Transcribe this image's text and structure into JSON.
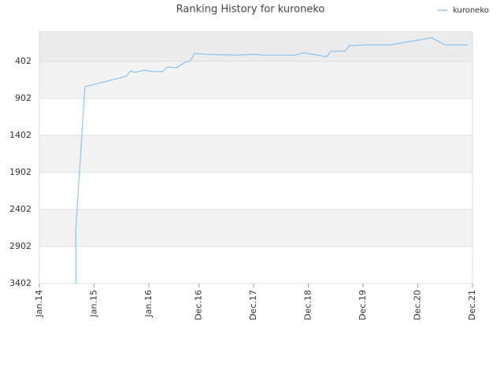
{
  "chart_data": {
    "type": "line",
    "title": "Ranking History for kuroneko",
    "x": [
      "2014-09",
      "2014-09",
      "2014-11",
      "2015-08",
      "2015-09",
      "2015-10",
      "2015-12",
      "2016-02",
      "2016-04",
      "2016-05",
      "2016-07",
      "2016-09",
      "2016-10",
      "2016-11",
      "2017-02",
      "2017-08",
      "2017-12",
      "2018-02",
      "2018-09",
      "2018-11",
      "2019-04",
      "2019-05",
      "2019-08",
      "2019-09",
      "2020-01",
      "2020-06",
      "2021-03",
      "2021-06",
      "2021-11"
    ],
    "series": [
      {
        "name": "kuroneko",
        "color": "#8cc4f2",
        "values": [
          3402,
          2660,
          745,
          606,
          532,
          553,
          521,
          542,
          542,
          478,
          489,
          415,
          404,
          298,
          309,
          319,
          309,
          319,
          319,
          287,
          340,
          266,
          266,
          191,
          181,
          181,
          85,
          181,
          181
        ]
      }
    ],
    "xlim": [
      "2014-01",
      "2021-12"
    ],
    "xticks": [
      {
        "value": "2014-01",
        "label": "Jan.14"
      },
      {
        "value": "2015-01",
        "label": "Jan.15"
      },
      {
        "value": "2016-01",
        "label": "Jan.16"
      },
      {
        "value": "2016-12",
        "label": "Dec.16"
      },
      {
        "value": "2017-12",
        "label": "Dec.17"
      },
      {
        "value": "2018-12",
        "label": "Dec.18"
      },
      {
        "value": "2019-12",
        "label": "Dec.19"
      },
      {
        "value": "2020-12",
        "label": "Dec.20"
      },
      {
        "value": "2021-12",
        "label": "Dec.21"
      }
    ],
    "ylim": [
      3402,
      0
    ],
    "yticks": [
      402,
      902,
      1402,
      1902,
      2402,
      2902,
      3402
    ],
    "grid": true,
    "legend": "top-right"
  }
}
